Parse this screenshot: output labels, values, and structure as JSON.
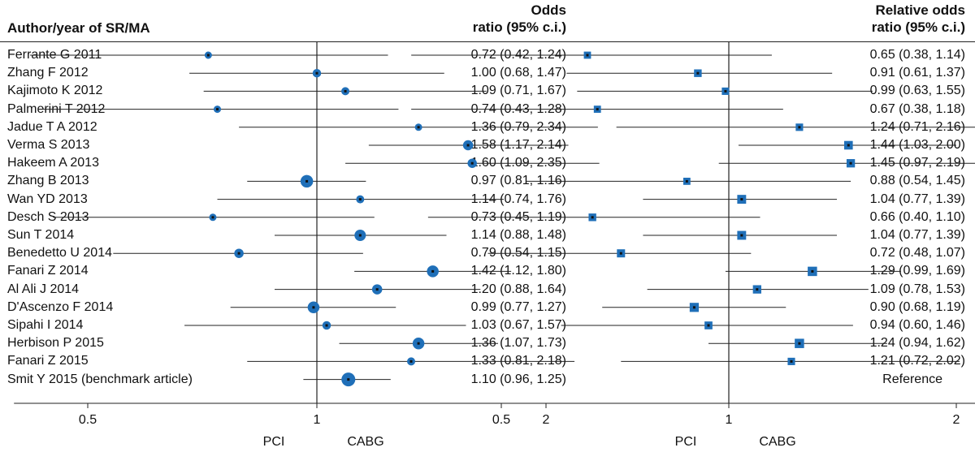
{
  "headers": {
    "author": "Author/year of SR/MA",
    "odds_ratio_line1": "Odds",
    "odds_ratio_line2": "ratio (95% c.i.)",
    "relative_odds_line1": "Relative odds",
    "relative_odds_line2": "ratio (95% c.i.)"
  },
  "chart_data": [
    {
      "type": "forest",
      "scale": "log",
      "xlim": [
        0.4,
        2.5
      ],
      "reference_line": 1,
      "ticks": [
        {
          "value": 0.5,
          "label": "0.5"
        },
        {
          "value": 1,
          "label": "1"
        },
        {
          "value": 2,
          "label": "2"
        }
      ],
      "direction_labels": {
        "left": "PCI",
        "right": "CABG"
      },
      "marker": "circle",
      "color": "#1f6fb8",
      "rows": [
        {
          "study": "Ferrante G 2011",
          "est": 0.72,
          "lo": 0.42,
          "hi": 1.24,
          "label": "0.72 (0.42, 1.24)",
          "weight": 0.2
        },
        {
          "study": "Zhang F 2012",
          "est": 1.0,
          "lo": 0.68,
          "hi": 1.47,
          "label": "1.00 (0.68, 1.47)",
          "weight": 0.35
        },
        {
          "study": "Kajimoto K 2012",
          "est": 1.09,
          "lo": 0.71,
          "hi": 1.67,
          "label": "1.09 (0.71, 1.67)",
          "weight": 0.3
        },
        {
          "study": "Palmerini T 2012",
          "est": 0.74,
          "lo": 0.43,
          "hi": 1.28,
          "label": "0.74 (0.43, 1.28)",
          "weight": 0.2
        },
        {
          "study": "Jadue T A 2012",
          "est": 1.36,
          "lo": 0.79,
          "hi": 2.34,
          "label": "1.36 (0.79, 2.34)",
          "weight": 0.2
        },
        {
          "study": "Verma S 2013",
          "est": 1.58,
          "lo": 1.17,
          "hi": 2.14,
          "label": "1.58 (1.17, 2.14)",
          "weight": 0.55
        },
        {
          "study": "Hakeem A 2013",
          "est": 1.6,
          "lo": 1.09,
          "hi": 2.35,
          "label": "1.60 (1.09, 2.35)",
          "weight": 0.45
        },
        {
          "study": "Zhang B 2013",
          "est": 0.97,
          "lo": 0.81,
          "hi": 1.16,
          "label": "0.97 (0.81, 1.16)",
          "weight": 0.85
        },
        {
          "study": "Wan YD 2013",
          "est": 1.14,
          "lo": 0.74,
          "hi": 1.76,
          "label": "1.14 (0.74, 1.76)",
          "weight": 0.3
        },
        {
          "study": "Desch S 2013",
          "est": 0.73,
          "lo": 0.45,
          "hi": 1.19,
          "label": "0.73 (0.45, 1.19)",
          "weight": 0.2
        },
        {
          "study": "Sun T 2014",
          "est": 1.14,
          "lo": 0.88,
          "hi": 1.48,
          "label": "1.14 (0.88, 1.48)",
          "weight": 0.7
        },
        {
          "study": "Benedetto U 2014",
          "est": 0.79,
          "lo": 0.54,
          "hi": 1.15,
          "label": "0.79 (0.54, 1.15)",
          "weight": 0.45
        },
        {
          "study": "Fanari Z 2014",
          "est": 1.42,
          "lo": 1.12,
          "hi": 1.8,
          "label": "1.42 (1.12, 1.80)",
          "weight": 0.75
        },
        {
          "study": "Al Ali J 2014",
          "est": 1.2,
          "lo": 0.88,
          "hi": 1.64,
          "label": "1.20 (0.88, 1.64)",
          "weight": 0.55
        },
        {
          "study": "D'Ascenzo F 2014",
          "est": 0.99,
          "lo": 0.77,
          "hi": 1.27,
          "label": "0.99 (0.77, 1.27)",
          "weight": 0.75
        },
        {
          "study": "Sipahi I 2014",
          "est": 1.03,
          "lo": 0.67,
          "hi": 1.57,
          "label": "1.03 (0.67, 1.57)",
          "weight": 0.35
        },
        {
          "study": "Herbison P 2015",
          "est": 1.36,
          "lo": 1.07,
          "hi": 1.73,
          "label": "1.36 (1.07, 1.73)",
          "weight": 0.75
        },
        {
          "study": "Fanari Z 2015",
          "est": 1.33,
          "lo": 0.81,
          "hi": 2.18,
          "label": "1.33 (0.81, 2.18)",
          "weight": 0.3
        },
        {
          "study": "Smit Y 2015 (benchmark article)",
          "est": 1.1,
          "lo": 0.96,
          "hi": 1.25,
          "label": "1.10 (0.96, 1.25)",
          "weight": 1.0
        }
      ]
    },
    {
      "type": "forest",
      "scale": "log",
      "xlim": [
        0.4,
        2.5
      ],
      "reference_line": 1,
      "ticks": [
        {
          "value": 0.5,
          "label": "0.5"
        },
        {
          "value": 1,
          "label": "1"
        },
        {
          "value": 2,
          "label": "2"
        }
      ],
      "direction_labels": {
        "left": "PCI",
        "right": "CABG"
      },
      "marker": "square",
      "color": "#1f6fb8",
      "rows": [
        {
          "study": "Ferrante G 2011",
          "est": 0.65,
          "lo": 0.38,
          "hi": 1.14,
          "label": "0.65 (0.38, 1.14)",
          "weight": 0.3
        },
        {
          "study": "Zhang F 2012",
          "est": 0.91,
          "lo": 0.61,
          "hi": 1.37,
          "label": "0.91 (0.61, 1.37)",
          "weight": 0.4
        },
        {
          "study": "Kajimoto K 2012",
          "est": 0.99,
          "lo": 0.63,
          "hi": 1.55,
          "label": "0.99 (0.63, 1.55)",
          "weight": 0.35
        },
        {
          "study": "Palmerini T 2012",
          "est": 0.67,
          "lo": 0.38,
          "hi": 1.18,
          "label": "0.67 (0.38, 1.18)",
          "weight": 0.3
        },
        {
          "study": "Jadue T A 2012",
          "est": 1.24,
          "lo": 0.71,
          "hi": 2.16,
          "label": "1.24 (0.71, 2.16)",
          "weight": 0.35
        },
        {
          "study": "Verma S 2013",
          "est": 1.44,
          "lo": 1.03,
          "hi": 2.0,
          "label": "1.44 (1.03, 2.00)",
          "weight": 0.6
        },
        {
          "study": "Hakeem A 2013",
          "est": 1.45,
          "lo": 0.97,
          "hi": 2.19,
          "label": "1.45 (0.97, 2.19)",
          "weight": 0.55
        },
        {
          "study": "Zhang B 2013",
          "est": 0.88,
          "lo": 0.54,
          "hi": 1.45,
          "label": "0.88 (0.54, 1.45)",
          "weight": 0.3
        },
        {
          "study": "Wan YD 2013",
          "est": 1.04,
          "lo": 0.77,
          "hi": 1.39,
          "label": "1.04 (0.77, 1.39)",
          "weight": 0.65
        },
        {
          "study": "Desch S 2013",
          "est": 0.66,
          "lo": 0.4,
          "hi": 1.1,
          "label": "0.66 (0.40, 1.10)",
          "weight": 0.4
        },
        {
          "study": "Sun T 2014",
          "est": 1.04,
          "lo": 0.77,
          "hi": 1.39,
          "label": "1.04 (0.77, 1.39)",
          "weight": 0.65
        },
        {
          "study": "Benedetto U 2014",
          "est": 0.72,
          "lo": 0.48,
          "hi": 1.07,
          "label": "0.72 (0.48, 1.07)",
          "weight": 0.5
        },
        {
          "study": "Fanari Z 2014",
          "est": 1.29,
          "lo": 0.99,
          "hi": 1.69,
          "label": "1.29 (0.99, 1.69)",
          "weight": 0.75
        },
        {
          "study": "Al Ali J 2014",
          "est": 1.09,
          "lo": 0.78,
          "hi": 1.53,
          "label": "1.09 (0.78, 1.53)",
          "weight": 0.55
        },
        {
          "study": "D'Ascenzo F 2014",
          "est": 0.9,
          "lo": 0.68,
          "hi": 1.19,
          "label": "0.90 (0.68, 1.19)",
          "weight": 0.7
        },
        {
          "study": "Sipahi I 2014",
          "est": 0.94,
          "lo": 0.6,
          "hi": 1.46,
          "label": "0.94 (0.60, 1.46)",
          "weight": 0.45
        },
        {
          "study": "Herbison P 2015",
          "est": 1.24,
          "lo": 0.94,
          "hi": 1.62,
          "label": "1.24 (0.94, 1.62)",
          "weight": 0.75
        },
        {
          "study": "Fanari Z 2015",
          "est": 1.21,
          "lo": 0.72,
          "hi": 2.02,
          "label": "1.21 (0.72, 2.02)",
          "weight": 0.35
        },
        {
          "study": "Smit Y 2015 (benchmark article)",
          "label": "Reference"
        }
      ]
    }
  ]
}
